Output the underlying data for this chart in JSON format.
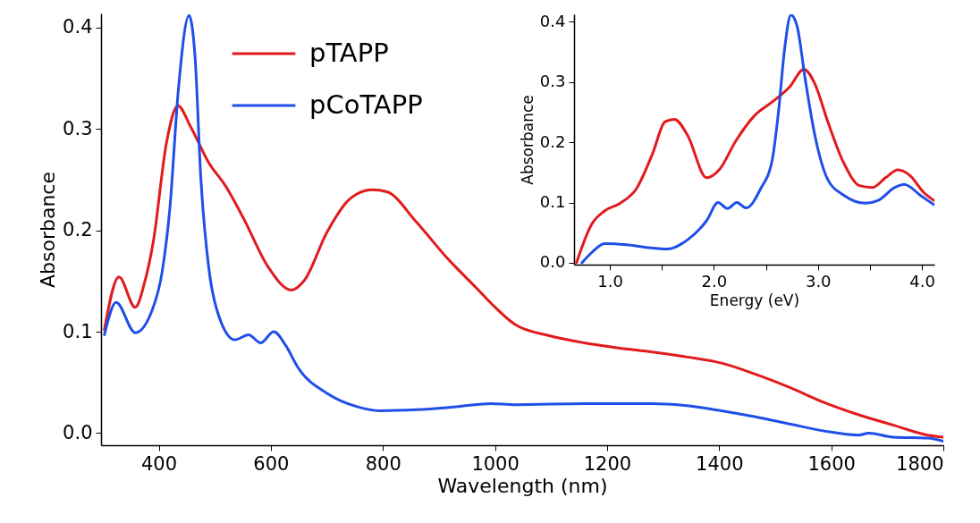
{
  "chart_data": [
    {
      "type": "line",
      "xlabel": "Wavelength (nm)",
      "ylabel": "Absorbance",
      "xlim": [
        297,
        1800
      ],
      "ylim": [
        -0.012,
        0.414
      ],
      "xticks": [
        400,
        600,
        800,
        1000,
        1200,
        1400,
        1600,
        1800
      ],
      "yticks": [
        {
          "value": 0,
          "label": "0.0"
        },
        0.1,
        0.2,
        0.3,
        0.4
      ],
      "legend": "top left",
      "series": [
        {
          "name": "pTAPP",
          "color": "#e31a1c",
          "x": [
            303,
            329,
            358,
            374,
            390,
            414,
            434,
            457,
            489,
            520,
            552,
            595,
            637,
            659,
            701,
            743,
            781,
            807,
            860,
            914,
            967,
            993,
            1036,
            1097,
            1159,
            1220,
            1281,
            1343,
            1404,
            1465,
            1526,
            1588,
            1649,
            1710,
            1772,
            1800
          ],
          "values": [
            0.102,
            0.154,
            0.124,
            0.147,
            0.188,
            0.287,
            0.323,
            0.302,
            0.267,
            0.243,
            0.211,
            0.164,
            0.141,
            0.15,
            0.199,
            0.232,
            0.24,
            0.238,
            0.208,
            0.173,
            0.143,
            0.128,
            0.107,
            0.096,
            0.089,
            0.084,
            0.08,
            0.075,
            0.069,
            0.058,
            0.045,
            0.03,
            0.018,
            0.008,
            -0.002,
            -0.004
          ]
        },
        {
          "name": "pCoTAPP",
          "color": "#1f4fe8",
          "x": [
            303,
            324,
            358,
            388,
            406,
            420,
            435,
            454,
            465,
            475,
            489,
            504,
            536,
            560,
            582,
            605,
            627,
            648,
            701,
            754,
            794,
            860,
            914,
            993,
            1036,
            1159,
            1281,
            1343,
            1404,
            1465,
            1526,
            1588,
            1649,
            1667,
            1710,
            1772,
            1800
          ],
          "values": [
            0.097,
            0.129,
            0.099,
            0.121,
            0.159,
            0.223,
            0.339,
            0.412,
            0.369,
            0.252,
            0.164,
            0.121,
            0.092,
            0.097,
            0.089,
            0.1,
            0.086,
            0.065,
            0.039,
            0.026,
            0.022,
            0.023,
            0.025,
            0.029,
            0.028,
            0.029,
            0.029,
            0.027,
            0.022,
            0.016,
            0.009,
            0.002,
            -0.002,
            0.0,
            -0.004,
            -0.005,
            -0.008
          ]
        }
      ]
    },
    {
      "type": "line",
      "xlabel": "Energy (eV)",
      "ylabel": "Absorbance",
      "xlim": [
        0.655,
        4.12
      ],
      "ylim": [
        -0.003,
        0.412
      ],
      "xticks": [
        {
          "value": 1,
          "label": "1.0"
        },
        {
          "value": 1.5,
          "label": null
        },
        {
          "value": 2,
          "label": "2.0"
        },
        {
          "value": 2.5,
          "label": null
        },
        {
          "value": 3,
          "label": "3.0"
        },
        {
          "value": 3.5,
          "label": null
        },
        {
          "value": 4,
          "label": "4.0"
        }
      ],
      "yticks": [
        {
          "value": 0,
          "label": "0.0"
        },
        0.1,
        0.2,
        0.3,
        0.4
      ],
      "series": [
        {
          "color": "#e31a1c",
          "x": [
            0.678,
            0.825,
            0.948,
            1.1,
            1.255,
            1.41,
            1.53,
            1.62,
            1.745,
            1.93,
            2.05,
            2.21,
            2.39,
            2.57,
            2.73,
            2.865,
            2.97,
            3.095,
            3.25,
            3.4,
            3.525,
            3.65,
            3.77,
            3.89,
            4.015,
            4.12
          ],
          "values": [
            0.0,
            0.064,
            0.086,
            0.099,
            0.123,
            0.181,
            0.234,
            0.238,
            0.212,
            0.141,
            0.154,
            0.202,
            0.244,
            0.268,
            0.292,
            0.321,
            0.297,
            0.234,
            0.165,
            0.128,
            0.125,
            0.141,
            0.154,
            0.144,
            0.117,
            0.103
          ]
        },
        {
          "color": "#1f4fe8",
          "x": [
            0.73,
            0.825,
            0.948,
            1.16,
            1.38,
            1.56,
            1.745,
            1.93,
            2.04,
            2.13,
            2.22,
            2.31,
            2.45,
            2.56,
            2.62,
            2.68,
            2.74,
            2.8,
            2.88,
            2.97,
            3.095,
            3.25,
            3.46,
            3.585,
            3.74,
            3.83,
            3.985,
            4.12
          ],
          "values": [
            0.0,
            0.017,
            0.032,
            0.03,
            0.025,
            0.023,
            0.038,
            0.07,
            0.1,
            0.09,
            0.1,
            0.091,
            0.123,
            0.17,
            0.249,
            0.355,
            0.411,
            0.392,
            0.302,
            0.212,
            0.138,
            0.112,
            0.099,
            0.104,
            0.125,
            0.13,
            0.112,
            0.096
          ]
        }
      ]
    }
  ]
}
